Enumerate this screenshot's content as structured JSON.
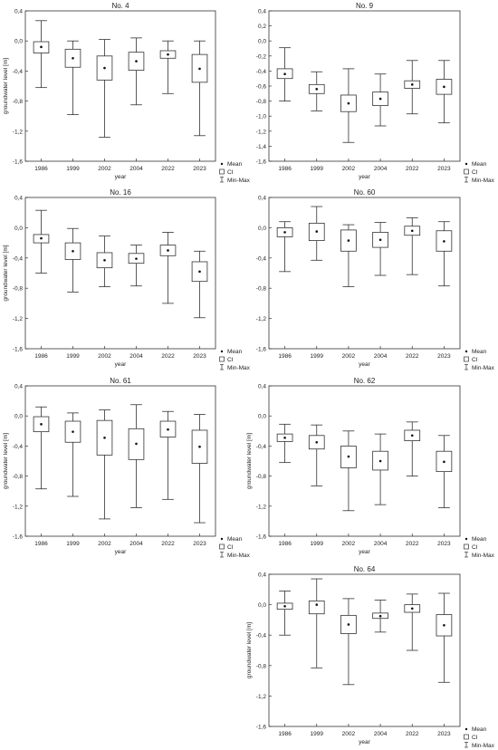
{
  "chart_data": [
    {
      "type": "box",
      "title": "No. 4",
      "xlabel": "year",
      "ylabel": "groundwater level [m]",
      "ylim": [
        -1.6,
        0.4
      ],
      "yticks": [
        "-1,6",
        "-1,2",
        "-0,8",
        "-0,4",
        "0,0",
        "0,4"
      ],
      "categories": [
        "1986",
        "1999",
        "2002",
        "2004",
        "2022",
        "2023"
      ],
      "boxes": [
        {
          "min": -0.62,
          "q1": -0.16,
          "mean": -0.08,
          "q3": -0.01,
          "max": 0.27
        },
        {
          "min": -0.98,
          "q1": -0.35,
          "mean": -0.23,
          "q3": -0.11,
          "max": 0.0
        },
        {
          "min": -1.28,
          "q1": -0.52,
          "mean": -0.36,
          "q3": -0.2,
          "max": 0.02
        },
        {
          "min": -0.85,
          "q1": -0.39,
          "mean": -0.27,
          "q3": -0.15,
          "max": 0.04
        },
        {
          "min": -0.7,
          "q1": -0.23,
          "mean": -0.18,
          "q3": -0.13,
          "max": 0.0
        },
        {
          "min": -1.26,
          "q1": -0.55,
          "mean": -0.37,
          "q3": -0.18,
          "max": 0.0
        }
      ],
      "legend": [
        "Mean",
        "CI",
        "Min-Max"
      ]
    },
    {
      "type": "box",
      "title": "No. 9",
      "xlabel": "year",
      "ylabel": "",
      "ylim": [
        -1.6,
        0.4
      ],
      "yticks": [
        "-1,6",
        "-1,4",
        "-1,2",
        "-1,0",
        "-0,8",
        "-0,6",
        "-0,4",
        "-0,2",
        "0,0",
        "0,2",
        "0,4"
      ],
      "categories": [
        "1986",
        "1999",
        "2002",
        "2004",
        "2022",
        "2023"
      ],
      "boxes": [
        {
          "min": -0.8,
          "q1": -0.5,
          "mean": -0.44,
          "q3": -0.37,
          "max": -0.09
        },
        {
          "min": -0.93,
          "q1": -0.7,
          "mean": -0.64,
          "q3": -0.58,
          "max": -0.41
        },
        {
          "min": -1.35,
          "q1": -0.94,
          "mean": -0.83,
          "q3": -0.72,
          "max": -0.37
        },
        {
          "min": -1.13,
          "q1": -0.86,
          "mean": -0.77,
          "q3": -0.68,
          "max": -0.44
        },
        {
          "min": -0.97,
          "q1": -0.63,
          "mean": -0.58,
          "q3": -0.53,
          "max": -0.26
        },
        {
          "min": -1.09,
          "q1": -0.71,
          "mean": -0.61,
          "q3": -0.51,
          "max": -0.26
        }
      ],
      "legend": [
        "Mean",
        "CI",
        "Min-Max"
      ]
    },
    {
      "type": "box",
      "title": "No. 16",
      "xlabel": "year",
      "ylabel": "groundwater level [m]",
      "ylim": [
        -1.6,
        0.4
      ],
      "yticks": [
        "-1,6",
        "-1,2",
        "-0,8",
        "-0,4",
        "0,0",
        "0,4"
      ],
      "categories": [
        "1986",
        "1999",
        "2002",
        "2004",
        "2022",
        "2023"
      ],
      "boxes": [
        {
          "min": -0.6,
          "q1": -0.2,
          "mean": -0.14,
          "q3": -0.09,
          "max": 0.23
        },
        {
          "min": -0.85,
          "q1": -0.42,
          "mean": -0.31,
          "q3": -0.2,
          "max": -0.01
        },
        {
          "min": -0.78,
          "q1": -0.53,
          "mean": -0.43,
          "q3": -0.33,
          "max": -0.11
        },
        {
          "min": -0.77,
          "q1": -0.47,
          "mean": -0.41,
          "q3": -0.34,
          "max": -0.23
        },
        {
          "min": -1.0,
          "q1": -0.37,
          "mean": -0.3,
          "q3": -0.23,
          "max": -0.06
        },
        {
          "min": -1.19,
          "q1": -0.71,
          "mean": -0.58,
          "q3": -0.45,
          "max": -0.31
        }
      ],
      "legend": [
        "Mean",
        "CI",
        "Min-Max"
      ]
    },
    {
      "type": "box",
      "title": "No. 60",
      "xlabel": "year",
      "ylabel": "",
      "ylim": [
        -1.6,
        0.4
      ],
      "yticks": [
        "-1,6",
        "-1,2",
        "-0,8",
        "-0,4",
        "0,0",
        "0,4"
      ],
      "categories": [
        "1986",
        "1999",
        "2002",
        "2004",
        "2022",
        "2023"
      ],
      "boxes": [
        {
          "min": -0.58,
          "q1": -0.12,
          "mean": -0.06,
          "q3": 0.0,
          "max": 0.08
        },
        {
          "min": -0.43,
          "q1": -0.17,
          "mean": -0.05,
          "q3": 0.06,
          "max": 0.28
        },
        {
          "min": -0.78,
          "q1": -0.31,
          "mean": -0.17,
          "q3": -0.03,
          "max": 0.04
        },
        {
          "min": -0.63,
          "q1": -0.26,
          "mean": -0.16,
          "q3": -0.06,
          "max": 0.07
        },
        {
          "min": -0.62,
          "q1": -0.1,
          "mean": -0.04,
          "q3": 0.02,
          "max": 0.13
        },
        {
          "min": -0.77,
          "q1": -0.31,
          "mean": -0.18,
          "q3": -0.04,
          "max": 0.08
        }
      ],
      "legend": [
        "Mean",
        "CI",
        "Min-Max"
      ]
    },
    {
      "type": "box",
      "title": "No. 61",
      "xlabel": "year",
      "ylabel": "groundwater level [m]",
      "ylim": [
        -1.6,
        0.4
      ],
      "yticks": [
        "-1,6",
        "-1,2",
        "-0,8",
        "-0,4",
        "0,0",
        "0,4"
      ],
      "categories": [
        "1986",
        "1999",
        "2002",
        "2004",
        "2022",
        "2023"
      ],
      "boxes": [
        {
          "min": -0.97,
          "q1": -0.21,
          "mean": -0.11,
          "q3": -0.01,
          "max": 0.12
        },
        {
          "min": -1.07,
          "q1": -0.35,
          "mean": -0.21,
          "q3": -0.07,
          "max": 0.04
        },
        {
          "min": -1.37,
          "q1": -0.52,
          "mean": -0.29,
          "q3": -0.06,
          "max": 0.08
        },
        {
          "min": -1.22,
          "q1": -0.58,
          "mean": -0.37,
          "q3": -0.17,
          "max": 0.15
        },
        {
          "min": -1.11,
          "q1": -0.28,
          "mean": -0.18,
          "q3": -0.07,
          "max": 0.06
        },
        {
          "min": -1.42,
          "q1": -0.63,
          "mean": -0.41,
          "q3": -0.19,
          "max": 0.02
        }
      ],
      "legend": [
        "Mean",
        "CI",
        "Min-Max"
      ]
    },
    {
      "type": "box",
      "title": "No. 62",
      "xlabel": "year",
      "ylabel": "groundwater level [m]",
      "ylim": [
        -1.6,
        0.4
      ],
      "yticks": [
        "-1,6",
        "-1,2",
        "-0,8",
        "-0,4",
        "0,0",
        "0,4"
      ],
      "categories": [
        "1986",
        "1999",
        "2002",
        "2004",
        "2022",
        "2023"
      ],
      "boxes": [
        {
          "min": -0.62,
          "q1": -0.34,
          "mean": -0.29,
          "q3": -0.24,
          "max": -0.11
        },
        {
          "min": -0.93,
          "q1": -0.44,
          "mean": -0.35,
          "q3": -0.26,
          "max": -0.12
        },
        {
          "min": -1.26,
          "q1": -0.69,
          "mean": -0.54,
          "q3": -0.4,
          "max": -0.2
        },
        {
          "min": -1.18,
          "q1": -0.72,
          "mean": -0.6,
          "q3": -0.47,
          "max": -0.24
        },
        {
          "min": -0.8,
          "q1": -0.33,
          "mean": -0.26,
          "q3": -0.19,
          "max": -0.08
        },
        {
          "min": -1.22,
          "q1": -0.74,
          "mean": -0.61,
          "q3": -0.47,
          "max": -0.26
        }
      ],
      "legend": [
        "Mean",
        "CI",
        "Min-Max"
      ]
    },
    {
      "type": "box",
      "title": "No. 64",
      "xlabel": "year",
      "ylabel": "groundwater level [m]",
      "ylim": [
        -1.6,
        0.4
      ],
      "yticks": [
        "-1,6",
        "-1,2",
        "-0,8",
        "-0,4",
        "0,0",
        "0,4"
      ],
      "categories": [
        "1986",
        "1999",
        "2002",
        "2004",
        "2022",
        "2023"
      ],
      "boxes": [
        {
          "min": -0.4,
          "q1": -0.06,
          "mean": -0.02,
          "q3": 0.02,
          "max": 0.18
        },
        {
          "min": -0.83,
          "q1": -0.12,
          "mean": 0.0,
          "q3": 0.05,
          "max": 0.34
        },
        {
          "min": -1.05,
          "q1": -0.38,
          "mean": -0.26,
          "q3": -0.14,
          "max": 0.08
        },
        {
          "min": -0.36,
          "q1": -0.18,
          "mean": -0.15,
          "q3": -0.11,
          "max": 0.06
        },
        {
          "min": -0.6,
          "q1": -0.1,
          "mean": -0.05,
          "q3": 0.0,
          "max": 0.14
        },
        {
          "min": -1.02,
          "q1": -0.41,
          "mean": -0.27,
          "q3": -0.13,
          "max": 0.15
        }
      ],
      "legend": [
        "Mean",
        "CI",
        "Min-Max"
      ]
    }
  ]
}
